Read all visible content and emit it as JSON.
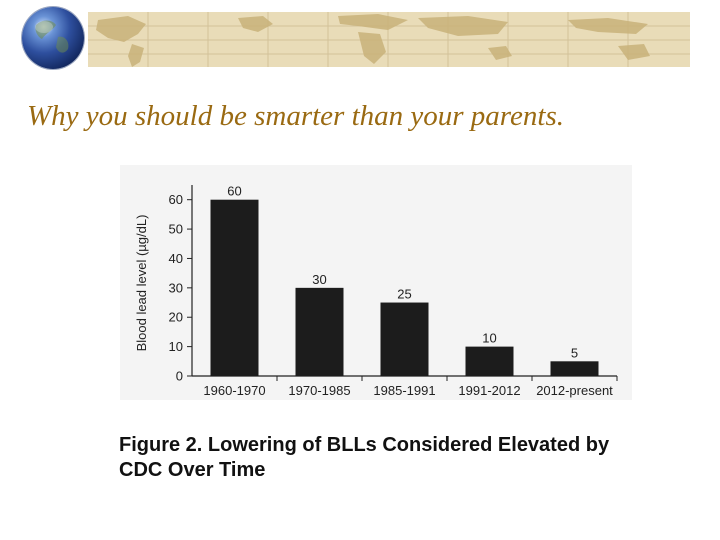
{
  "slide": {
    "title": "Why you should be smarter than your parents.",
    "caption_line1": "Figure 2. Lowering of BLLs Considered Elevated by",
    "caption_line2": "CDC Over Time"
  },
  "colors": {
    "banner": "#e9dcb8",
    "title": "#9a6a12",
    "bar": "#1c1c1c",
    "axis": "#222222"
  },
  "icons": {
    "logo": "globe-icon"
  },
  "chart_data": {
    "type": "bar",
    "title": "",
    "xlabel": "",
    "ylabel": "Blood lead level (µg/dL)",
    "categories": [
      "1960-1970",
      "1970-1985",
      "1985-1991",
      "1991-2012",
      "2012-present"
    ],
    "values": [
      60,
      30,
      25,
      10,
      5
    ],
    "data_labels": [
      "60",
      "30",
      "25",
      "10",
      "5"
    ],
    "yticks": [
      0,
      10,
      20,
      30,
      40,
      50,
      60
    ],
    "ylim": [
      0,
      65
    ],
    "grid": false
  }
}
